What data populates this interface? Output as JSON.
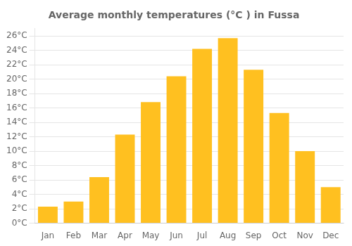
{
  "chart_data": {
    "type": "bar",
    "title": "Average monthly temperatures (°C ) in Fussa",
    "categories": [
      "Jan",
      "Feb",
      "Mar",
      "Apr",
      "May",
      "Jun",
      "Jul",
      "Aug",
      "Sep",
      "Oct",
      "Nov",
      "Dec"
    ],
    "values": [
      2.3,
      3.0,
      6.4,
      12.3,
      16.8,
      20.4,
      24.2,
      25.7,
      21.3,
      15.3,
      10.0,
      5.0
    ],
    "color": "#FFC020",
    "ylim": [
      0,
      27
    ],
    "yticks": [
      {
        "value": 0,
        "label": "0°C"
      },
      {
        "value": 2,
        "label": "2°C"
      },
      {
        "value": 4,
        "label": "4°C"
      },
      {
        "value": 6,
        "label": "6°C"
      },
      {
        "value": 8,
        "label": "8°C"
      },
      {
        "value": 10,
        "label": "10°C"
      },
      {
        "value": 12,
        "label": "12°C"
      },
      {
        "value": 14,
        "label": "14°C"
      },
      {
        "value": 16,
        "label": "16°C"
      },
      {
        "value": 18,
        "label": "18°C"
      },
      {
        "value": 20,
        "label": "20°C"
      },
      {
        "value": 22,
        "label": "22°C"
      },
      {
        "value": 24,
        "label": "24°C"
      },
      {
        "value": 26,
        "label": "26°C"
      }
    ],
    "grid": "y"
  }
}
